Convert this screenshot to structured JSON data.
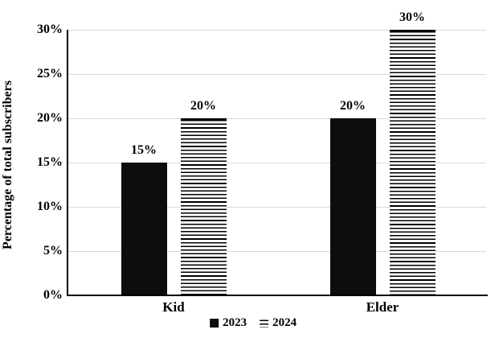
{
  "chart_data": {
    "type": "bar",
    "title": "",
    "xlabel": "",
    "ylabel": "Percentage of total subscribers",
    "categories": [
      "Kid",
      "Elder"
    ],
    "series": [
      {
        "name": "2023",
        "style": "solid-black",
        "values": [
          15,
          20
        ],
        "labels": [
          "15%",
          "20%"
        ]
      },
      {
        "name": "2024",
        "style": "horizontal-stripes",
        "values": [
          20,
          30
        ],
        "labels": [
          "20%",
          "30%"
        ]
      }
    ],
    "ylim": [
      0,
      30
    ],
    "yticks": [
      0,
      5,
      10,
      15,
      20,
      25,
      30
    ],
    "ytick_labels": [
      "0%",
      "5%",
      "10%",
      "15%",
      "20%",
      "25%",
      "30%"
    ],
    "grid": "horizontal",
    "legend_position": "bottom-center",
    "colors": {
      "bar_fill": "#0d0d0d",
      "stripe_line": "#000000",
      "stripe_bg": "#ffffff",
      "gridline": "#d9d9d9",
      "axis": "#000000",
      "background": "#ffffff",
      "text": "#000000"
    }
  }
}
